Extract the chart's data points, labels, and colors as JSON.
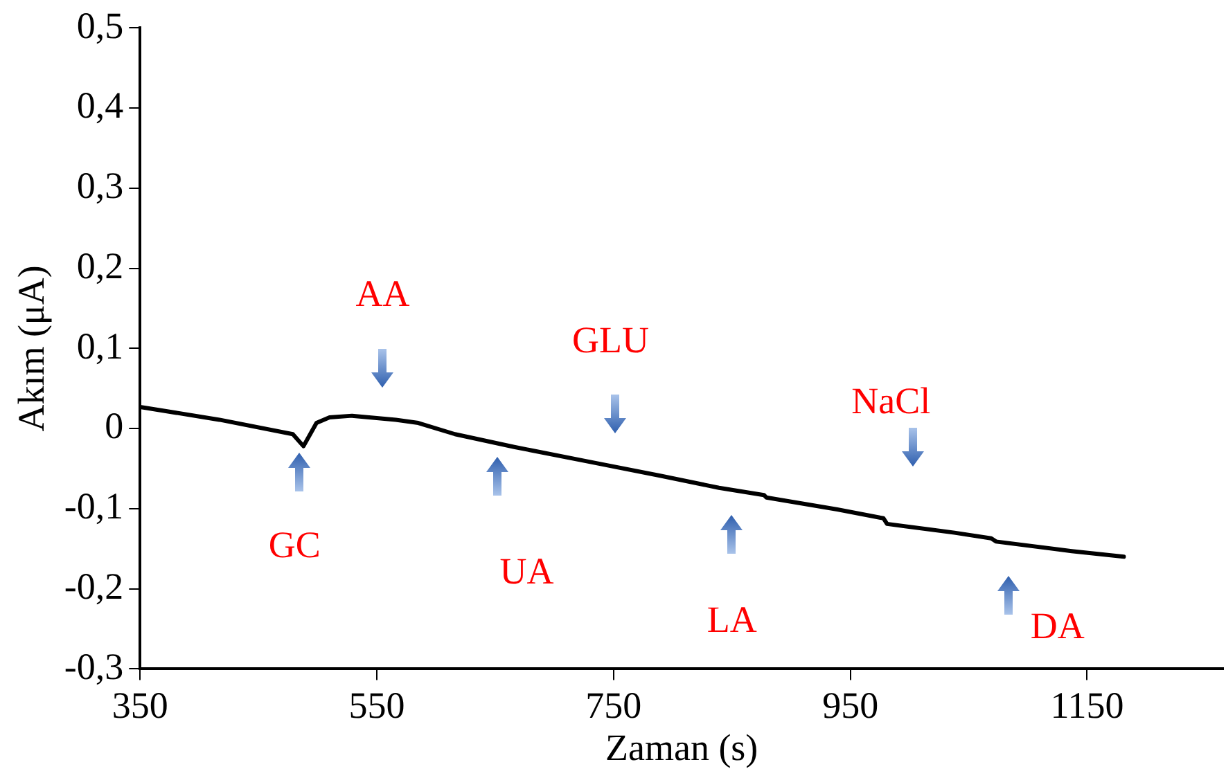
{
  "chart_data": {
    "type": "line",
    "xlabel": "Zaman (s)",
    "ylabel": "Akım (μA)",
    "x": [
      350,
      417,
      479,
      488,
      499,
      510,
      529,
      566,
      585,
      616,
      666,
      728,
      790,
      839,
      877,
      879,
      939,
      978,
      981,
      1038,
      1069,
      1073,
      1137,
      1181
    ],
    "series": [
      {
        "color": "#000000",
        "values": [
          0.027,
          0.011,
          -0.007,
          -0.022,
          0.007,
          0.014,
          0.016,
          0.011,
          0.007,
          -0.007,
          -0.023,
          -0.041,
          -0.059,
          -0.074,
          -0.083,
          -0.086,
          -0.101,
          -0.112,
          -0.119,
          -0.13,
          -0.137,
          -0.141,
          -0.153,
          -0.16
        ]
      }
    ],
    "xlim": [
      350,
      1265
    ],
    "xticks": [
      350,
      550,
      750,
      950,
      1150
    ],
    "ylim": [
      -0.3,
      0.5
    ],
    "yticks": [
      {
        "value": -0.3,
        "label": "-0,3"
      },
      {
        "value": -0.2,
        "label": "-0,2"
      },
      {
        "value": -0.1,
        "label": "-0,1"
      },
      {
        "value": 0,
        "label": "0"
      },
      {
        "value": 0.1,
        "label": "0,1"
      },
      {
        "value": 0.2,
        "label": "0,2"
      },
      {
        "value": 0.3,
        "label": "0,3"
      },
      {
        "value": 0.4,
        "label": "0,4"
      },
      {
        "value": 0.5,
        "label": "0,5"
      }
    ],
    "grid": false,
    "legend": false,
    "marker": "none",
    "line_style": "solid",
    "annotations": [
      {
        "text": "AA",
        "x": 555,
        "y": 0.013
      },
      {
        "text": "GC",
        "x": 484,
        "y": -0.015
      },
      {
        "text": "GLU",
        "x": 751,
        "y": -0.048
      },
      {
        "text": "UA",
        "x": 652,
        "y": -0.019
      },
      {
        "text": "LA",
        "x": 850,
        "y": -0.076
      },
      {
        "text": "NaCl",
        "x": 1003,
        "y": -0.117
      },
      {
        "text": "DA",
        "x": 1084,
        "y": -0.139
      }
    ]
  }
}
